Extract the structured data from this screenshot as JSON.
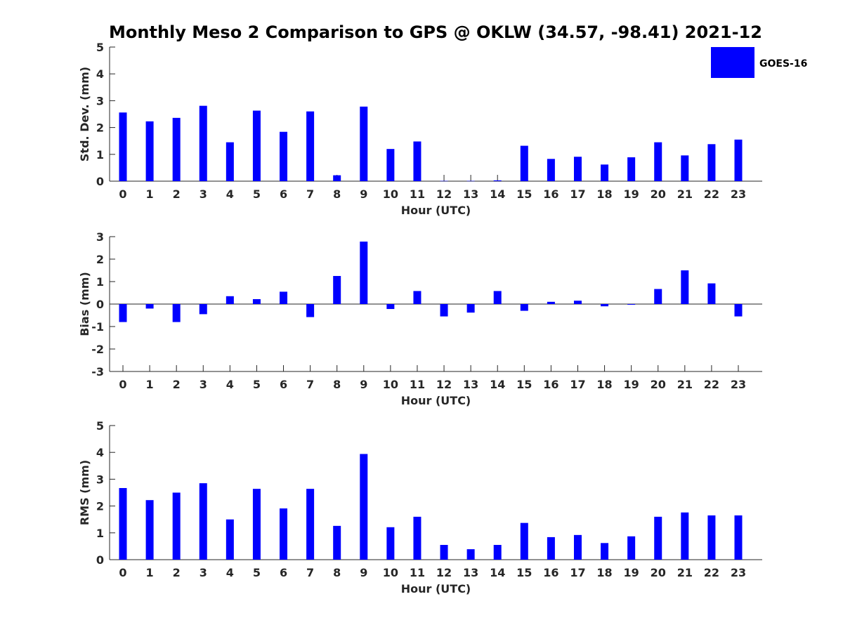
{
  "chart_data": {
    "type": "bar",
    "title": "Monthly Meso 2 Comparison to GPS @ OKLW (34.57, -98.41) 2021-12",
    "legend": {
      "label": "GOES-16",
      "position": "top-right",
      "color": "#0000ff"
    },
    "bar_color": "#0000ff",
    "categories": [
      "0",
      "1",
      "2",
      "3",
      "4",
      "5",
      "6",
      "7",
      "8",
      "9",
      "10",
      "11",
      "12",
      "13",
      "14",
      "15",
      "16",
      "17",
      "18",
      "19",
      "20",
      "21",
      "22",
      "23"
    ],
    "panels": [
      {
        "id": "std",
        "ylabel": "Std. Dev. (mm)",
        "xlabel": "Hour (UTC)",
        "ylim": [
          0,
          5
        ],
        "yticks": [
          "0",
          "1",
          "2",
          "3",
          "4",
          "5"
        ],
        "values": [
          2.56,
          2.23,
          2.36,
          2.81,
          1.45,
          2.63,
          1.84,
          2.6,
          0.22,
          2.78,
          1.2,
          1.48,
          0.01,
          0.01,
          0.03,
          1.32,
          0.83,
          0.91,
          0.62,
          0.89,
          1.45,
          0.96,
          1.38,
          1.55
        ]
      },
      {
        "id": "bias",
        "ylabel": "Bias (mm)",
        "xlabel": "Hour (UTC)",
        "ylim": [
          -3,
          3
        ],
        "yticks": [
          "-3",
          "-2",
          "-1",
          "0",
          "1",
          "2",
          "3"
        ],
        "values": [
          -0.8,
          -0.2,
          -0.8,
          -0.45,
          0.35,
          0.22,
          0.55,
          -0.58,
          1.25,
          2.78,
          -0.22,
          0.58,
          -0.55,
          -0.38,
          0.58,
          -0.3,
          0.1,
          0.15,
          -0.1,
          -0.03,
          0.67,
          1.5,
          0.92,
          -0.55
        ]
      },
      {
        "id": "rms",
        "ylabel": "RMS (mm)",
        "xlabel": "Hour (UTC)",
        "ylim": [
          0,
          5
        ],
        "yticks": [
          "0",
          "1",
          "2",
          "3",
          "4",
          "5"
        ],
        "values": [
          2.67,
          2.22,
          2.5,
          2.85,
          1.5,
          2.64,
          1.91,
          2.64,
          1.26,
          3.94,
          1.21,
          1.6,
          0.55,
          0.39,
          0.55,
          1.37,
          0.84,
          0.92,
          0.62,
          0.87,
          1.6,
          1.76,
          1.65,
          1.65
        ]
      }
    ]
  }
}
